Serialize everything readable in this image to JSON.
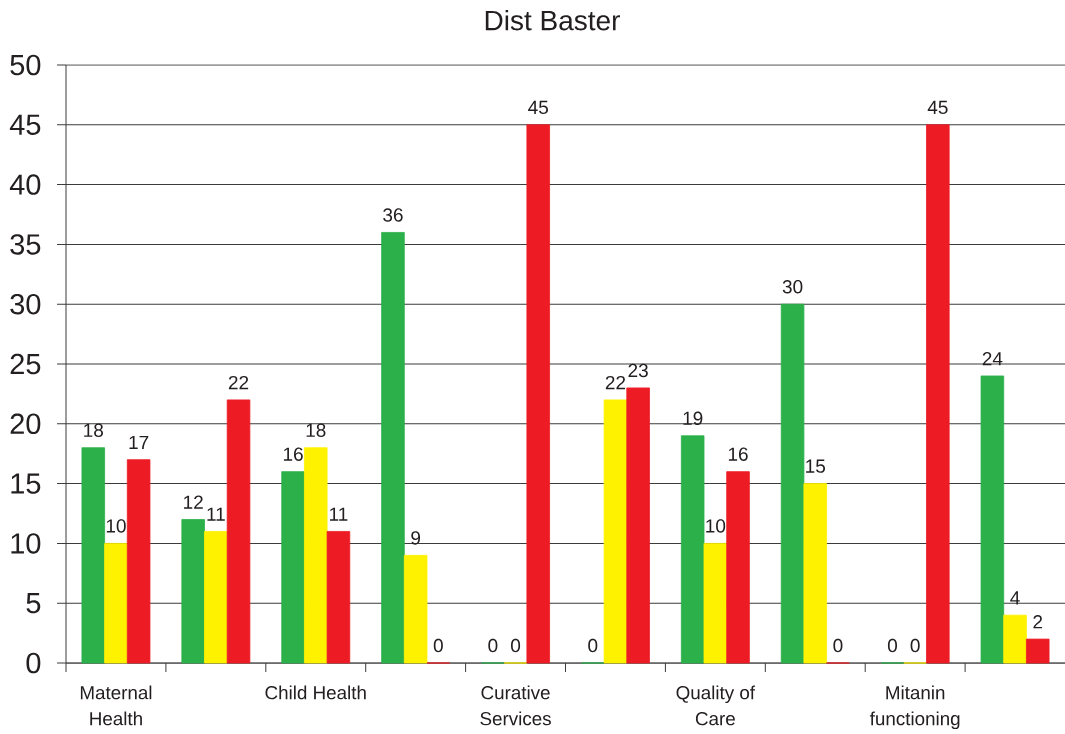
{
  "chart_data": {
    "type": "bar",
    "title": "Dist Baster",
    "categories": [
      "Maternal Health",
      null,
      "Child Health",
      null,
      "Curative Services",
      null,
      "Quality of Care",
      null,
      "Mitanin functioning",
      null
    ],
    "series": [
      {
        "color": "#2bb04a",
        "values": [
          18,
          12,
          16,
          36,
          0,
          0,
          19,
          30,
          0,
          24
        ]
      },
      {
        "color": "#fff200",
        "values": [
          10,
          11,
          18,
          9,
          0,
          22,
          10,
          15,
          0,
          4
        ]
      },
      {
        "color": "#ed1c24",
        "values": [
          17,
          22,
          11,
          0,
          45,
          23,
          16,
          0,
          45,
          2
        ]
      }
    ],
    "ylim": [
      0,
      50
    ],
    "yticks": [
      0,
      5,
      10,
      15,
      20,
      25,
      30,
      35,
      40,
      45,
      50
    ],
    "grid": "y",
    "data_labels": true
  }
}
